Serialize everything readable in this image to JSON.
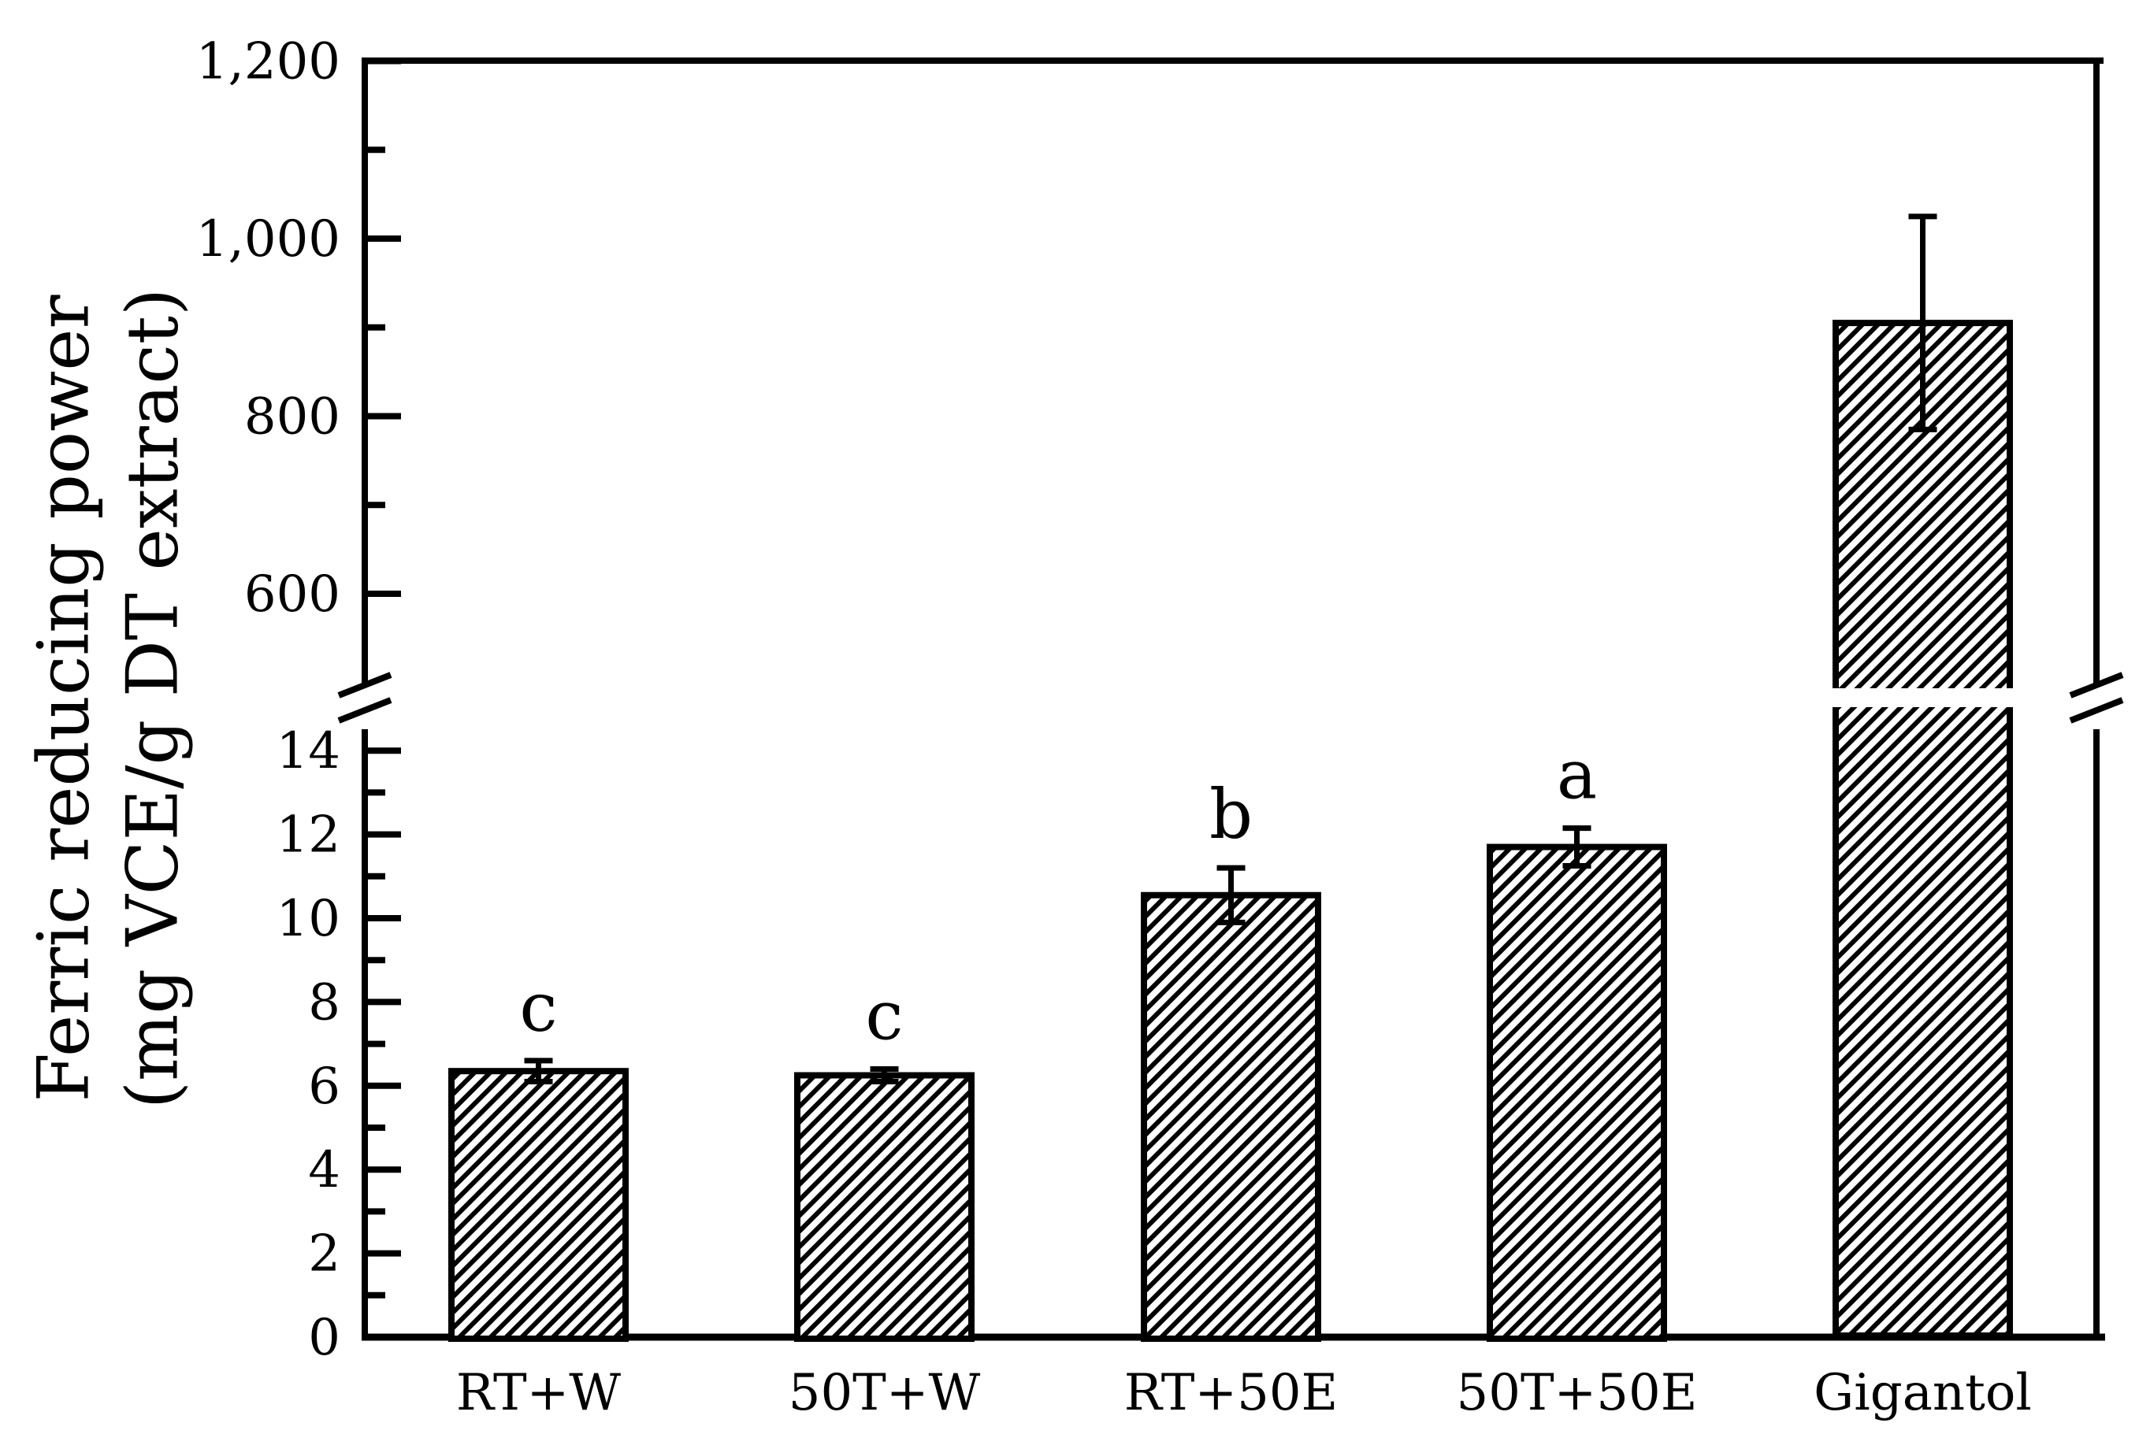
{
  "figure": {
    "background_color": "#ffffff",
    "ink_color": "#000000"
  },
  "chart_data": {
    "type": "bar",
    "title": "",
    "xlabel": "",
    "ylabel": "Ferric reducing power (mg VCE/g DT extract)",
    "ylabel_line1": "Ferric reducing power",
    "ylabel_line2": "(mg VCE/g DT extract)",
    "categories": [
      "RT+W",
      "50T+W",
      "RT+50E",
      "50T+50E",
      "Gigantol"
    ],
    "values": [
      6.35,
      6.25,
      10.55,
      11.7,
      905
    ],
    "error_bars": [
      0.25,
      0.15,
      0.65,
      0.45,
      120
    ],
    "significance_letters": [
      "c",
      "c",
      "b",
      "a",
      ""
    ],
    "bar_style": "white fill with black diagonal hatch (/), black outline",
    "grid": false,
    "legend": false,
    "broken_y_axis": {
      "break_marks": "double slash on left axis, right axis and through Gigantol bar",
      "lower": {
        "range": [
          0,
          15
        ],
        "major_ticks": [
          0,
          2,
          4,
          6,
          8,
          10,
          12,
          14
        ],
        "minor_ticks": [
          1,
          3,
          5,
          7,
          9,
          11,
          13
        ],
        "tick_labels": [
          "0",
          "2",
          "4",
          "6",
          "8",
          "10",
          "12",
          "14"
        ]
      },
      "upper": {
        "range": [
          500,
          1200
        ],
        "major_ticks": [
          600,
          800,
          1000,
          1200
        ],
        "minor_ticks": [
          700,
          900,
          1100
        ],
        "tick_labels": [
          "600",
          "800",
          "1,000",
          "1,200"
        ]
      }
    }
  }
}
